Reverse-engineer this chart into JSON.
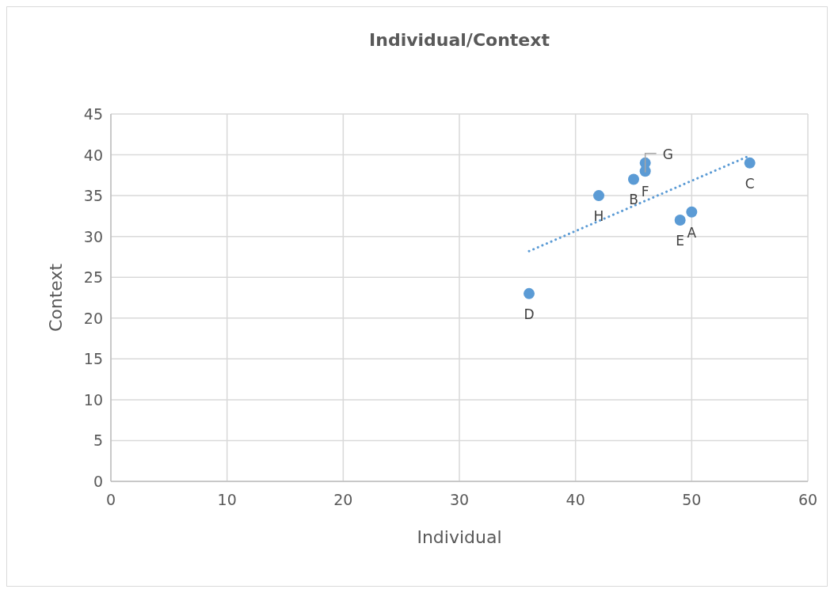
{
  "chart_data": {
    "type": "scatter",
    "title": "Individual/Context",
    "xlabel": "Individual",
    "ylabel": "Context",
    "series": [
      {
        "color": "#5b9bd5",
        "x": [
          50,
          45,
          55,
          36,
          49,
          46,
          46,
          42
        ],
        "values": [
          33,
          37,
          39,
          23,
          32,
          38,
          39,
          35
        ],
        "marker": "circle"
      },
      {
        "type": "line",
        "color": "#5b9bd5",
        "x": [
          36,
          55
        ],
        "values": [
          28.2,
          39.9
        ],
        "line_style": "dotted"
      }
    ],
    "annotations": [
      {
        "text": "A",
        "x": 50,
        "y": 33
      },
      {
        "text": "B",
        "x": 45,
        "y": 37
      },
      {
        "text": "C",
        "x": 55,
        "y": 39
      },
      {
        "text": "D",
        "x": 36,
        "y": 23
      },
      {
        "text": "E",
        "x": 49,
        "y": 32
      },
      {
        "text": "F",
        "x": 46,
        "y": 38
      },
      {
        "text": "G",
        "x": 46,
        "y": 39
      },
      {
        "text": "H",
        "x": 42,
        "y": 35
      }
    ],
    "xlim": [
      0,
      60
    ],
    "xticks": [
      0,
      10,
      20,
      30,
      40,
      50,
      60
    ],
    "ylim": [
      0,
      45
    ],
    "yticks": [
      0,
      5,
      10,
      15,
      20,
      25,
      30,
      35,
      40,
      45
    ],
    "grid": true
  }
}
